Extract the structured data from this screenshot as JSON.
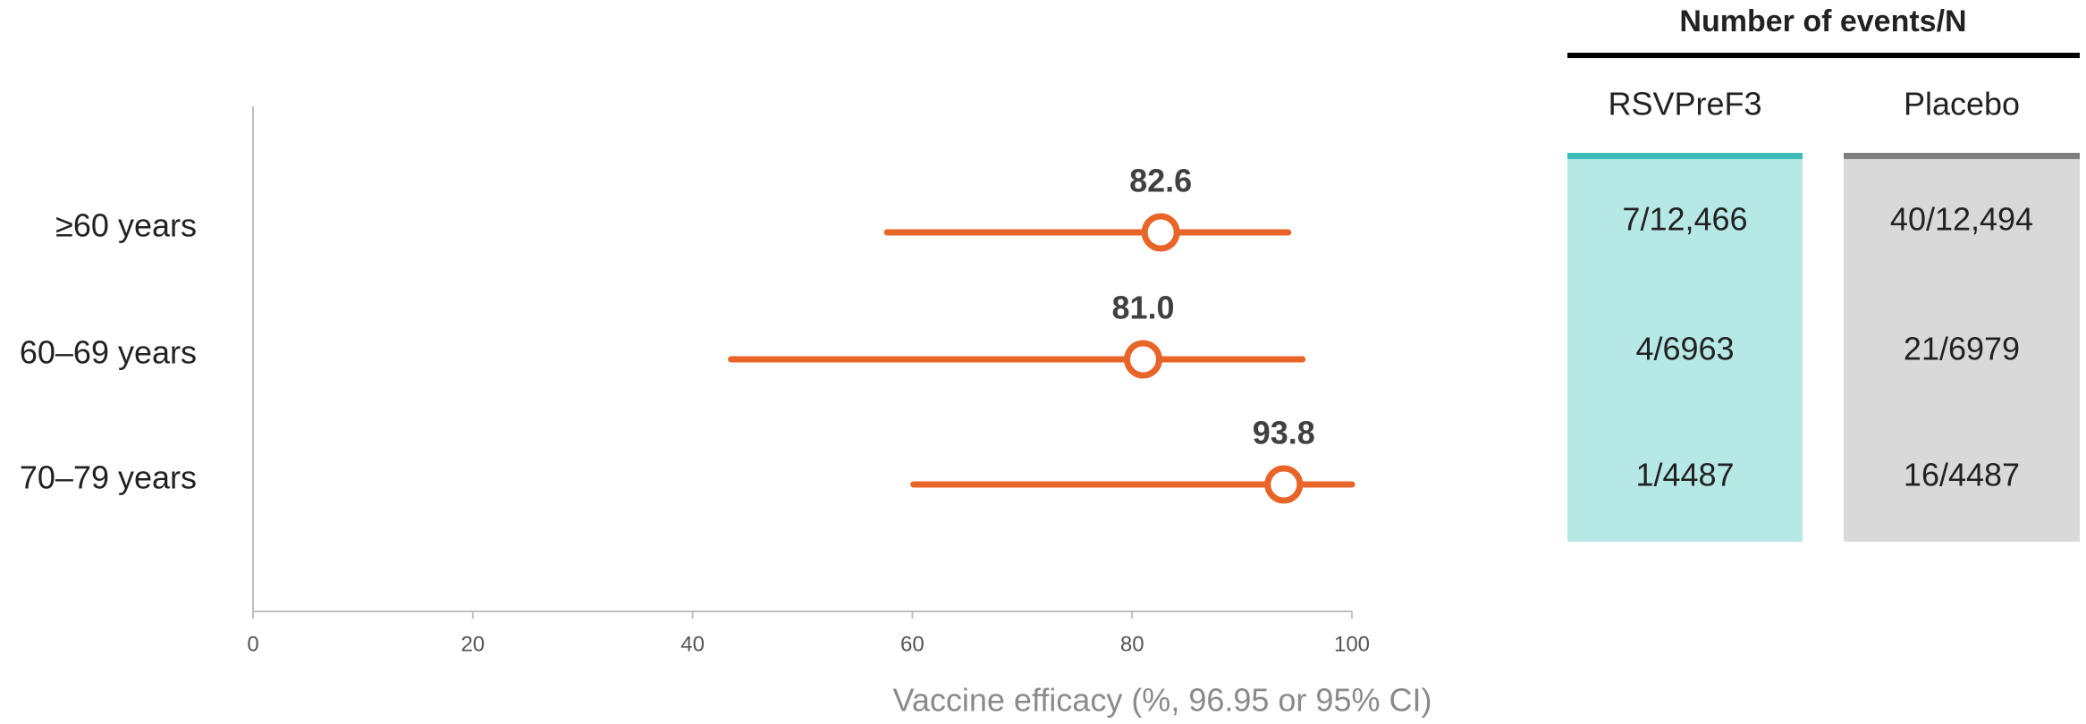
{
  "chart_data": {
    "type": "forest",
    "categories": [
      "≥60 years",
      "60–69 years",
      "70–79 years"
    ],
    "values": [
      82.6,
      81.0,
      93.8
    ],
    "value_labels": [
      "82.6",
      "81.0",
      "93.8"
    ],
    "lower": [
      57.7,
      43.5,
      60.1
    ],
    "upper": [
      94.2,
      95.5,
      100
    ],
    "color": "#e8652a",
    "xlim": [
      0,
      100
    ],
    "xticks": [
      0,
      20,
      40,
      60,
      80,
      100
    ],
    "x_label": "Vaccine efficacy (%, 96.95 or 95% CI)",
    "grid": false
  },
  "table": {
    "title": "Number of events/N",
    "columns": [
      "RSVPreF3",
      "Placebo"
    ],
    "column_colors": [
      "#b6e8e6",
      "#d9d9d9"
    ],
    "rows": [
      [
        "7/12,466",
        "40/12,494"
      ],
      [
        "4/6963",
        "21/6979"
      ],
      [
        "1/4487",
        "16/4487"
      ]
    ]
  }
}
